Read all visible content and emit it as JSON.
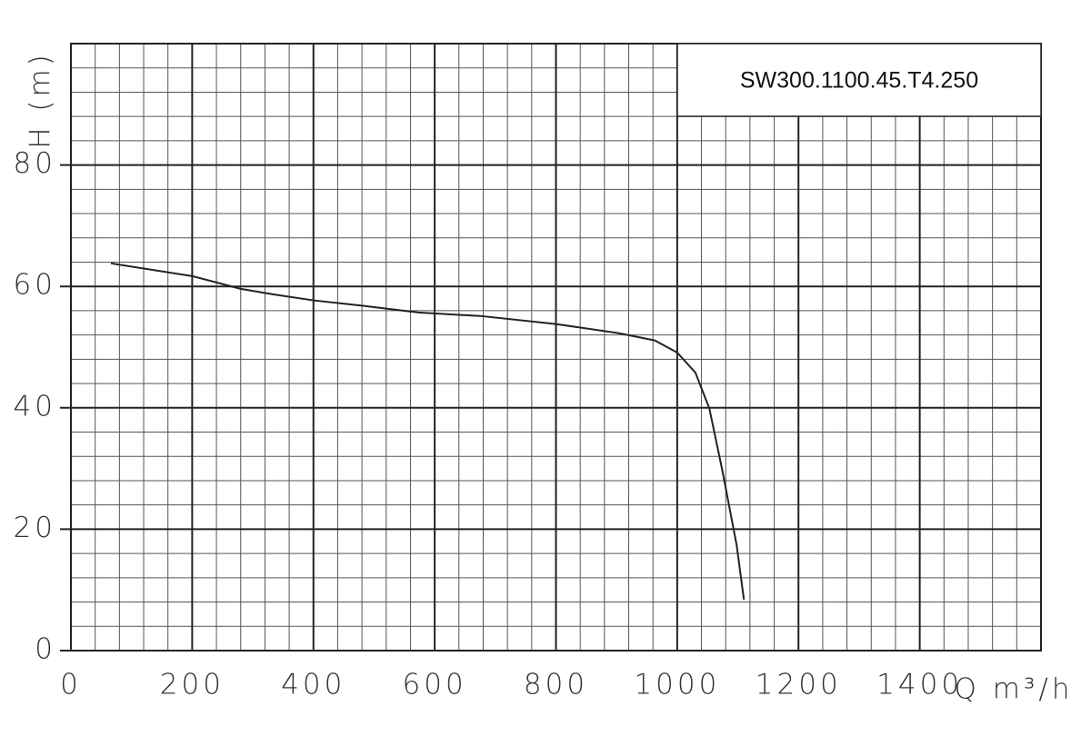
{
  "chart_data": {
    "type": "line",
    "title": "SW300.1100.45.T4.250",
    "x_label": "Q m³/h",
    "y_label": "H (m)",
    "x": [
      66,
      200,
      280,
      333,
      400,
      483,
      573,
      678,
      800,
      903,
      963,
      1000,
      1030,
      1053,
      1075,
      1098,
      1110
    ],
    "values": [
      63.8,
      61.7,
      59.6,
      58.7,
      57.7,
      56.8,
      55.7,
      55.1,
      53.8,
      52.3,
      51.1,
      49.1,
      45.8,
      39.9,
      29.4,
      17.4,
      8.4
    ],
    "color": "#222222",
    "xlim": [
      0,
      1600
    ],
    "xticks": [
      0,
      200,
      400,
      600,
      800,
      1000,
      1200,
      1400
    ],
    "ylim": [
      0,
      100
    ],
    "yticks": [
      0,
      20,
      40,
      60,
      80
    ],
    "grid": true
  }
}
